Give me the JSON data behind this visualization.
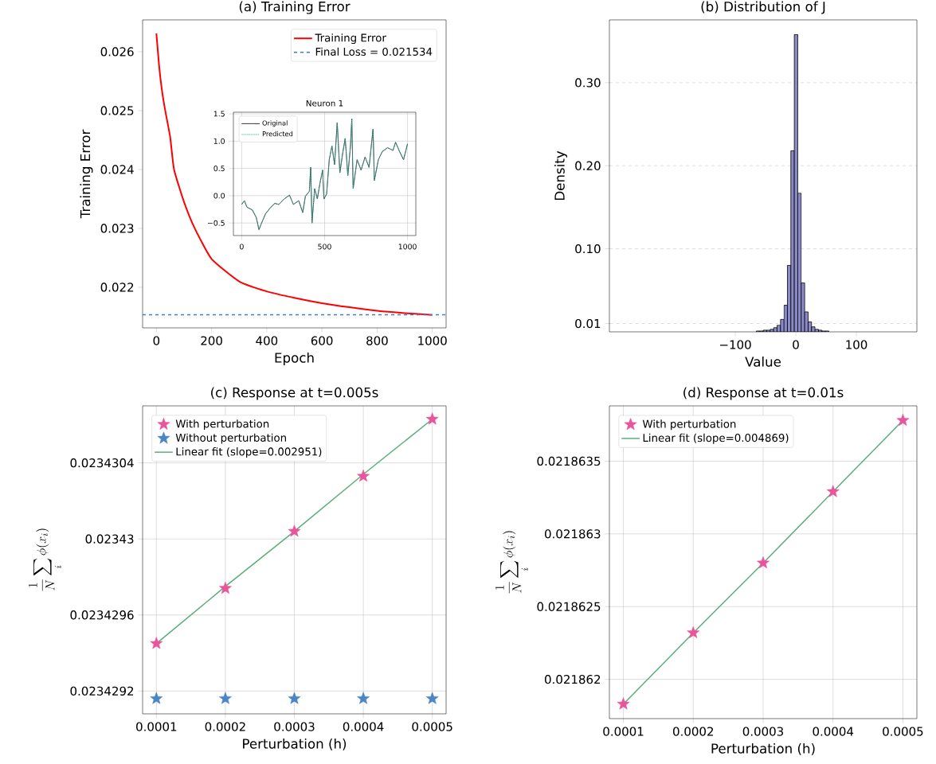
{
  "chart_data": [
    {
      "type": "line",
      "title": "(a) Training Error",
      "xlabel": "Epoch",
      "ylabel": "Training Error",
      "xlim": [
        -50,
        1050
      ],
      "ylim": [
        0.02131,
        0.02654
      ],
      "xticks": [
        0,
        200,
        400,
        600,
        800,
        1000
      ],
      "yticks": [
        0.022,
        0.023,
        0.024,
        0.025,
        0.026
      ],
      "legend": "top right",
      "x": [
        0,
        10,
        20,
        32,
        50,
        64,
        100,
        139,
        200,
        300,
        400,
        500,
        600,
        700,
        800,
        900,
        1000
      ],
      "series": [
        {
          "name": "Training Error",
          "color": "#ff0000",
          "values": [
            0.02631,
            0.02575,
            0.02535,
            0.025,
            0.02455,
            0.024,
            0.02345,
            0.023,
            0.02248,
            0.0221,
            0.02193,
            0.02182,
            0.02173,
            0.02166,
            0.0216,
            0.02156,
            0.02153
          ]
        }
      ],
      "ref_lines": [
        {
          "axis": "y",
          "value": 0.021534,
          "label": "Final Loss = 0.021534",
          "color": "#3a7fc9",
          "line_style": "dashed"
        }
      ]
    },
    {
      "type": "line",
      "title": "Neuron 1",
      "xlim": [
        -50,
        1050
      ],
      "ylim": [
        -0.73,
        1.53
      ],
      "xticks": [
        0,
        500,
        1000
      ],
      "yticks": [
        {
          "value": -0.5,
          "label": "−0.5"
        },
        {
          "value": 0,
          "label": "0.0"
        },
        {
          "value": 0.5,
          "label": "0.5"
        },
        {
          "value": 1,
          "label": "1.0"
        },
        {
          "value": 1.5,
          "label": "1.5"
        }
      ],
      "grid": true,
      "legend": "top left",
      "x": [
        0,
        16,
        32,
        64,
        88,
        104,
        120,
        144,
        176,
        200,
        224,
        256,
        288,
        312,
        344,
        368,
        384,
        408,
        416,
        424,
        440,
        456,
        472,
        488,
        496,
        512,
        528,
        544,
        560,
        576,
        592,
        608,
        624,
        640,
        656,
        664,
        672,
        696,
        720,
        744,
        768,
        792,
        800,
        824,
        848,
        880,
        912,
        928,
        952,
        976,
        1000
      ],
      "series": [
        {
          "name": "Original",
          "color": "#000000",
          "line_style": "solid",
          "values": [
            -0.16,
            -0.09,
            -0.21,
            -0.26,
            -0.4,
            -0.62,
            -0.5,
            -0.33,
            -0.21,
            -0.14,
            -0.16,
            -0.06,
            0.01,
            -0.16,
            -0.09,
            -0.31,
            -0.01,
            0.08,
            0.52,
            -0.5,
            0.13,
            -0.06,
            0.23,
            0.47,
            -0.06,
            0.03,
            0.66,
            0.91,
            0.57,
            1.34,
            0.42,
            0.76,
            1.05,
            0.37,
            0.91,
            1.41,
            0.13,
            0.66,
            0.47,
            0.71,
            0.52,
            1.22,
            0.28,
            0.66,
            0.81,
            0.88,
            0.83,
            0.98,
            0.81,
            0.66,
            0.95
          ]
        },
        {
          "name": "Predicted",
          "color": "#3ab5a0",
          "line_style": "dashed",
          "values": [
            -0.16,
            -0.09,
            -0.21,
            -0.26,
            -0.4,
            -0.62,
            -0.5,
            -0.33,
            -0.21,
            -0.14,
            -0.16,
            -0.06,
            0.01,
            -0.16,
            -0.09,
            -0.31,
            -0.01,
            0.08,
            0.52,
            -0.5,
            0.13,
            -0.06,
            0.23,
            0.47,
            -0.06,
            0.03,
            0.66,
            0.91,
            0.57,
            1.34,
            0.42,
            0.76,
            1.05,
            0.37,
            0.91,
            1.41,
            0.13,
            0.66,
            0.47,
            0.71,
            0.52,
            1.22,
            0.28,
            0.66,
            0.81,
            0.88,
            0.83,
            0.98,
            0.81,
            0.66,
            0.95
          ]
        }
      ]
    },
    {
      "type": "histogram",
      "title": "(b) Distribution of J",
      "xlabel": "Value",
      "ylabel": "Density",
      "xlim": [
        -308,
        200
      ],
      "ylim": [
        0,
        0.3756
      ],
      "xticks": [
        {
          "value": -100,
          "label": "−100"
        },
        0,
        100
      ],
      "yticks": [
        0.01,
        {
          "value": 0.1,
          "label": "0.10"
        },
        {
          "value": 0.2,
          "label": "0.20"
        },
        {
          "value": 0.3,
          "label": "0.30"
        }
      ],
      "grid": "y",
      "color": "#8a8ac8",
      "bins": [
        -65.2,
        -59.5,
        -53.8,
        -48.1,
        -42.4,
        -36.7,
        -31.0,
        -25.3,
        -19.6,
        -13.9,
        -8.2,
        -2.5,
        3.2,
        8.9,
        14.6,
        20.3,
        26.0,
        31.7,
        37.4,
        43.1,
        48.8,
        54.5
      ],
      "values": [
        0.001,
        0.001,
        0.002,
        0.002,
        0.003,
        0.005,
        0.008,
        0.015,
        0.032,
        0.08,
        0.218,
        0.358,
        0.167,
        0.059,
        0.024,
        0.012,
        0.006,
        0.003,
        0.002,
        0.001,
        0.001
      ]
    },
    {
      "type": "scatter",
      "title": "(c) Response at t=0.005s",
      "xlabel": "Perturbation (h)",
      "ylabel": "\\frac{1}{N}\\sum_i \\phi(x_i)",
      "xlim": [
        8e-05,
        0.00052
      ],
      "ylim": [
        0.02342908,
        0.0234307
      ],
      "xticks": [
        0.0001,
        0.0002,
        0.0003,
        0.0004,
        0.0005
      ],
      "yticks": [
        0.0234292,
        0.0234296,
        0.02343,
        0.0234304
      ],
      "grid": true,
      "legend": "top left",
      "x": [
        0.0001,
        0.0002,
        0.0003,
        0.0004,
        0.0005
      ],
      "series": [
        {
          "name": "With perturbation",
          "color": "#e8559a",
          "marker": "star",
          "values": [
            0.02342945,
            0.02342974,
            0.02343004,
            0.02343033,
            0.02343063
          ]
        },
        {
          "name": "Without perturbation",
          "color": "#4a86c5",
          "marker": "star",
          "values": [
            0.02342916,
            0.02342916,
            0.02342916,
            0.02342916,
            0.02342916
          ]
        },
        {
          "name": "Linear fit (slope=0.002951)",
          "type": "line",
          "color": "#5aad78",
          "values": [
            0.02342945,
            0.02342975,
            0.02343004,
            0.02343034,
            0.02343063
          ]
        }
      ]
    },
    {
      "type": "scatter",
      "title": "(d) Response at t=0.01s",
      "xlabel": "Perturbation (h)",
      "ylabel": "\\frac{1}{N}\\sum_i \\phi(x_i)",
      "xlim": [
        8e-05,
        0.00052
      ],
      "ylim": [
        0.02186173,
        0.02186388
      ],
      "xticks": [
        0.0001,
        0.0002,
        0.0003,
        0.0004,
        0.0005
      ],
      "yticks": [
        0.021862,
        0.0218625,
        0.021863,
        0.0218635
      ],
      "grid": true,
      "legend": "top left",
      "x": [
        0.0001,
        0.0002,
        0.0003,
        0.0004,
        0.0005
      ],
      "series": [
        {
          "name": "With perturbation",
          "color": "#e8559a",
          "marker": "star",
          "values": [
            0.02186183,
            0.02186232,
            0.0218628,
            0.02186329,
            0.02186378
          ]
        },
        {
          "name": "Linear fit (slope=0.004869)",
          "type": "line",
          "color": "#5aad78",
          "values": [
            0.02186183,
            0.02186232,
            0.0218628,
            0.02186329,
            0.02186378
          ]
        }
      ]
    }
  ]
}
